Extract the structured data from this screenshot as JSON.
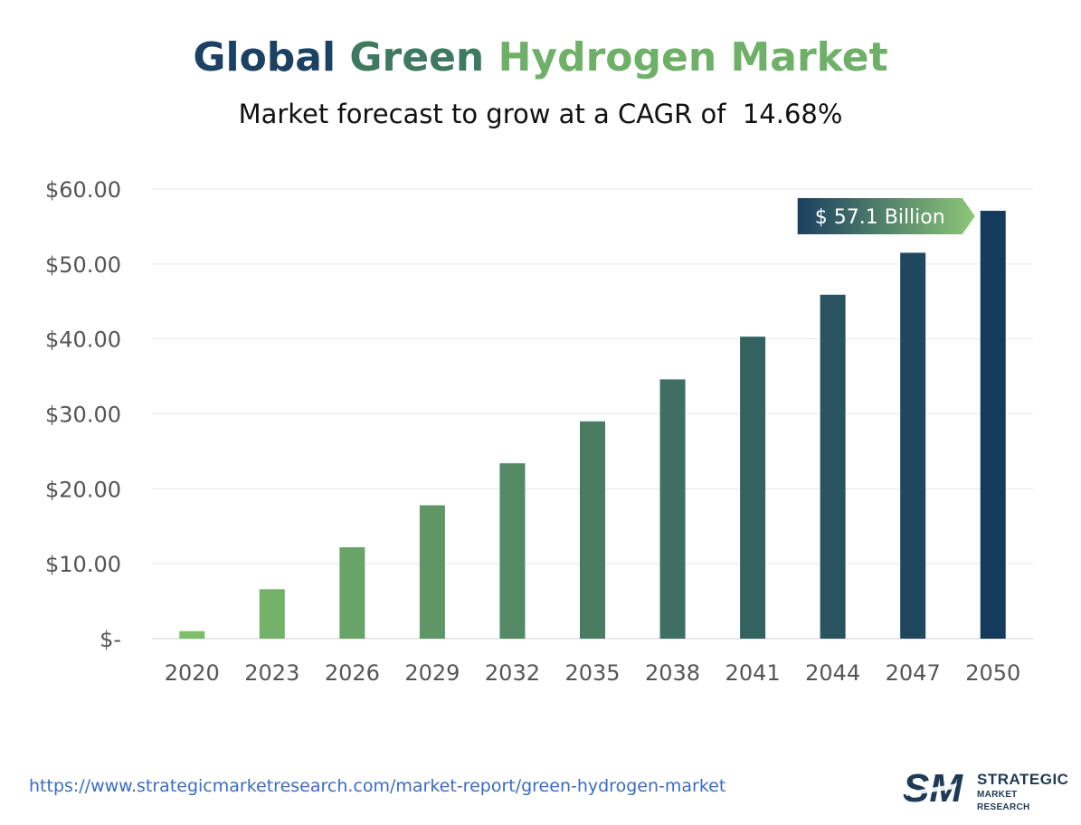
{
  "title": {
    "part1": "Global",
    "part2": "Green",
    "part3": "Hydrogen Market"
  },
  "subtitle": "Market forecast to grow at a CAGR of  14.68%",
  "footer": {
    "url": "https://www.strategicmarketresearch.com/market-report/green-hydrogen-market"
  },
  "logo": {
    "mark": "SM",
    "line1": "STRATEGIC",
    "line2": "MARKET RESEARCH"
  },
  "colors": {
    "title_part1": "#1b4263",
    "title_part2": "#3f7a60",
    "title_part3": "#6fb068",
    "bar_start": "#7dbe6a",
    "bar_end": "#143a5c",
    "axis_text": "#555555",
    "grid": "#e6e6e6"
  },
  "chart_data": {
    "type": "bar",
    "categories": [
      "2020",
      "2023",
      "2026",
      "2029",
      "2032",
      "2035",
      "2038",
      "2041",
      "2044",
      "2047",
      "2050"
    ],
    "values": [
      1.0,
      6.6,
      12.2,
      17.8,
      23.4,
      29.0,
      34.6,
      40.3,
      45.9,
      51.5,
      57.1
    ],
    "ylim": [
      0,
      60
    ],
    "yticks": [
      0,
      10,
      20,
      30,
      40,
      50,
      60
    ],
    "ytick_labels": [
      "$-",
      "$10.00",
      "$20.00",
      "$30.00",
      "$40.00",
      "$50.00",
      "$60.00"
    ],
    "grid": true,
    "annotation": {
      "category": "2050",
      "text": "$ 57.1 Billion"
    },
    "xlabel": "",
    "ylabel": ""
  }
}
